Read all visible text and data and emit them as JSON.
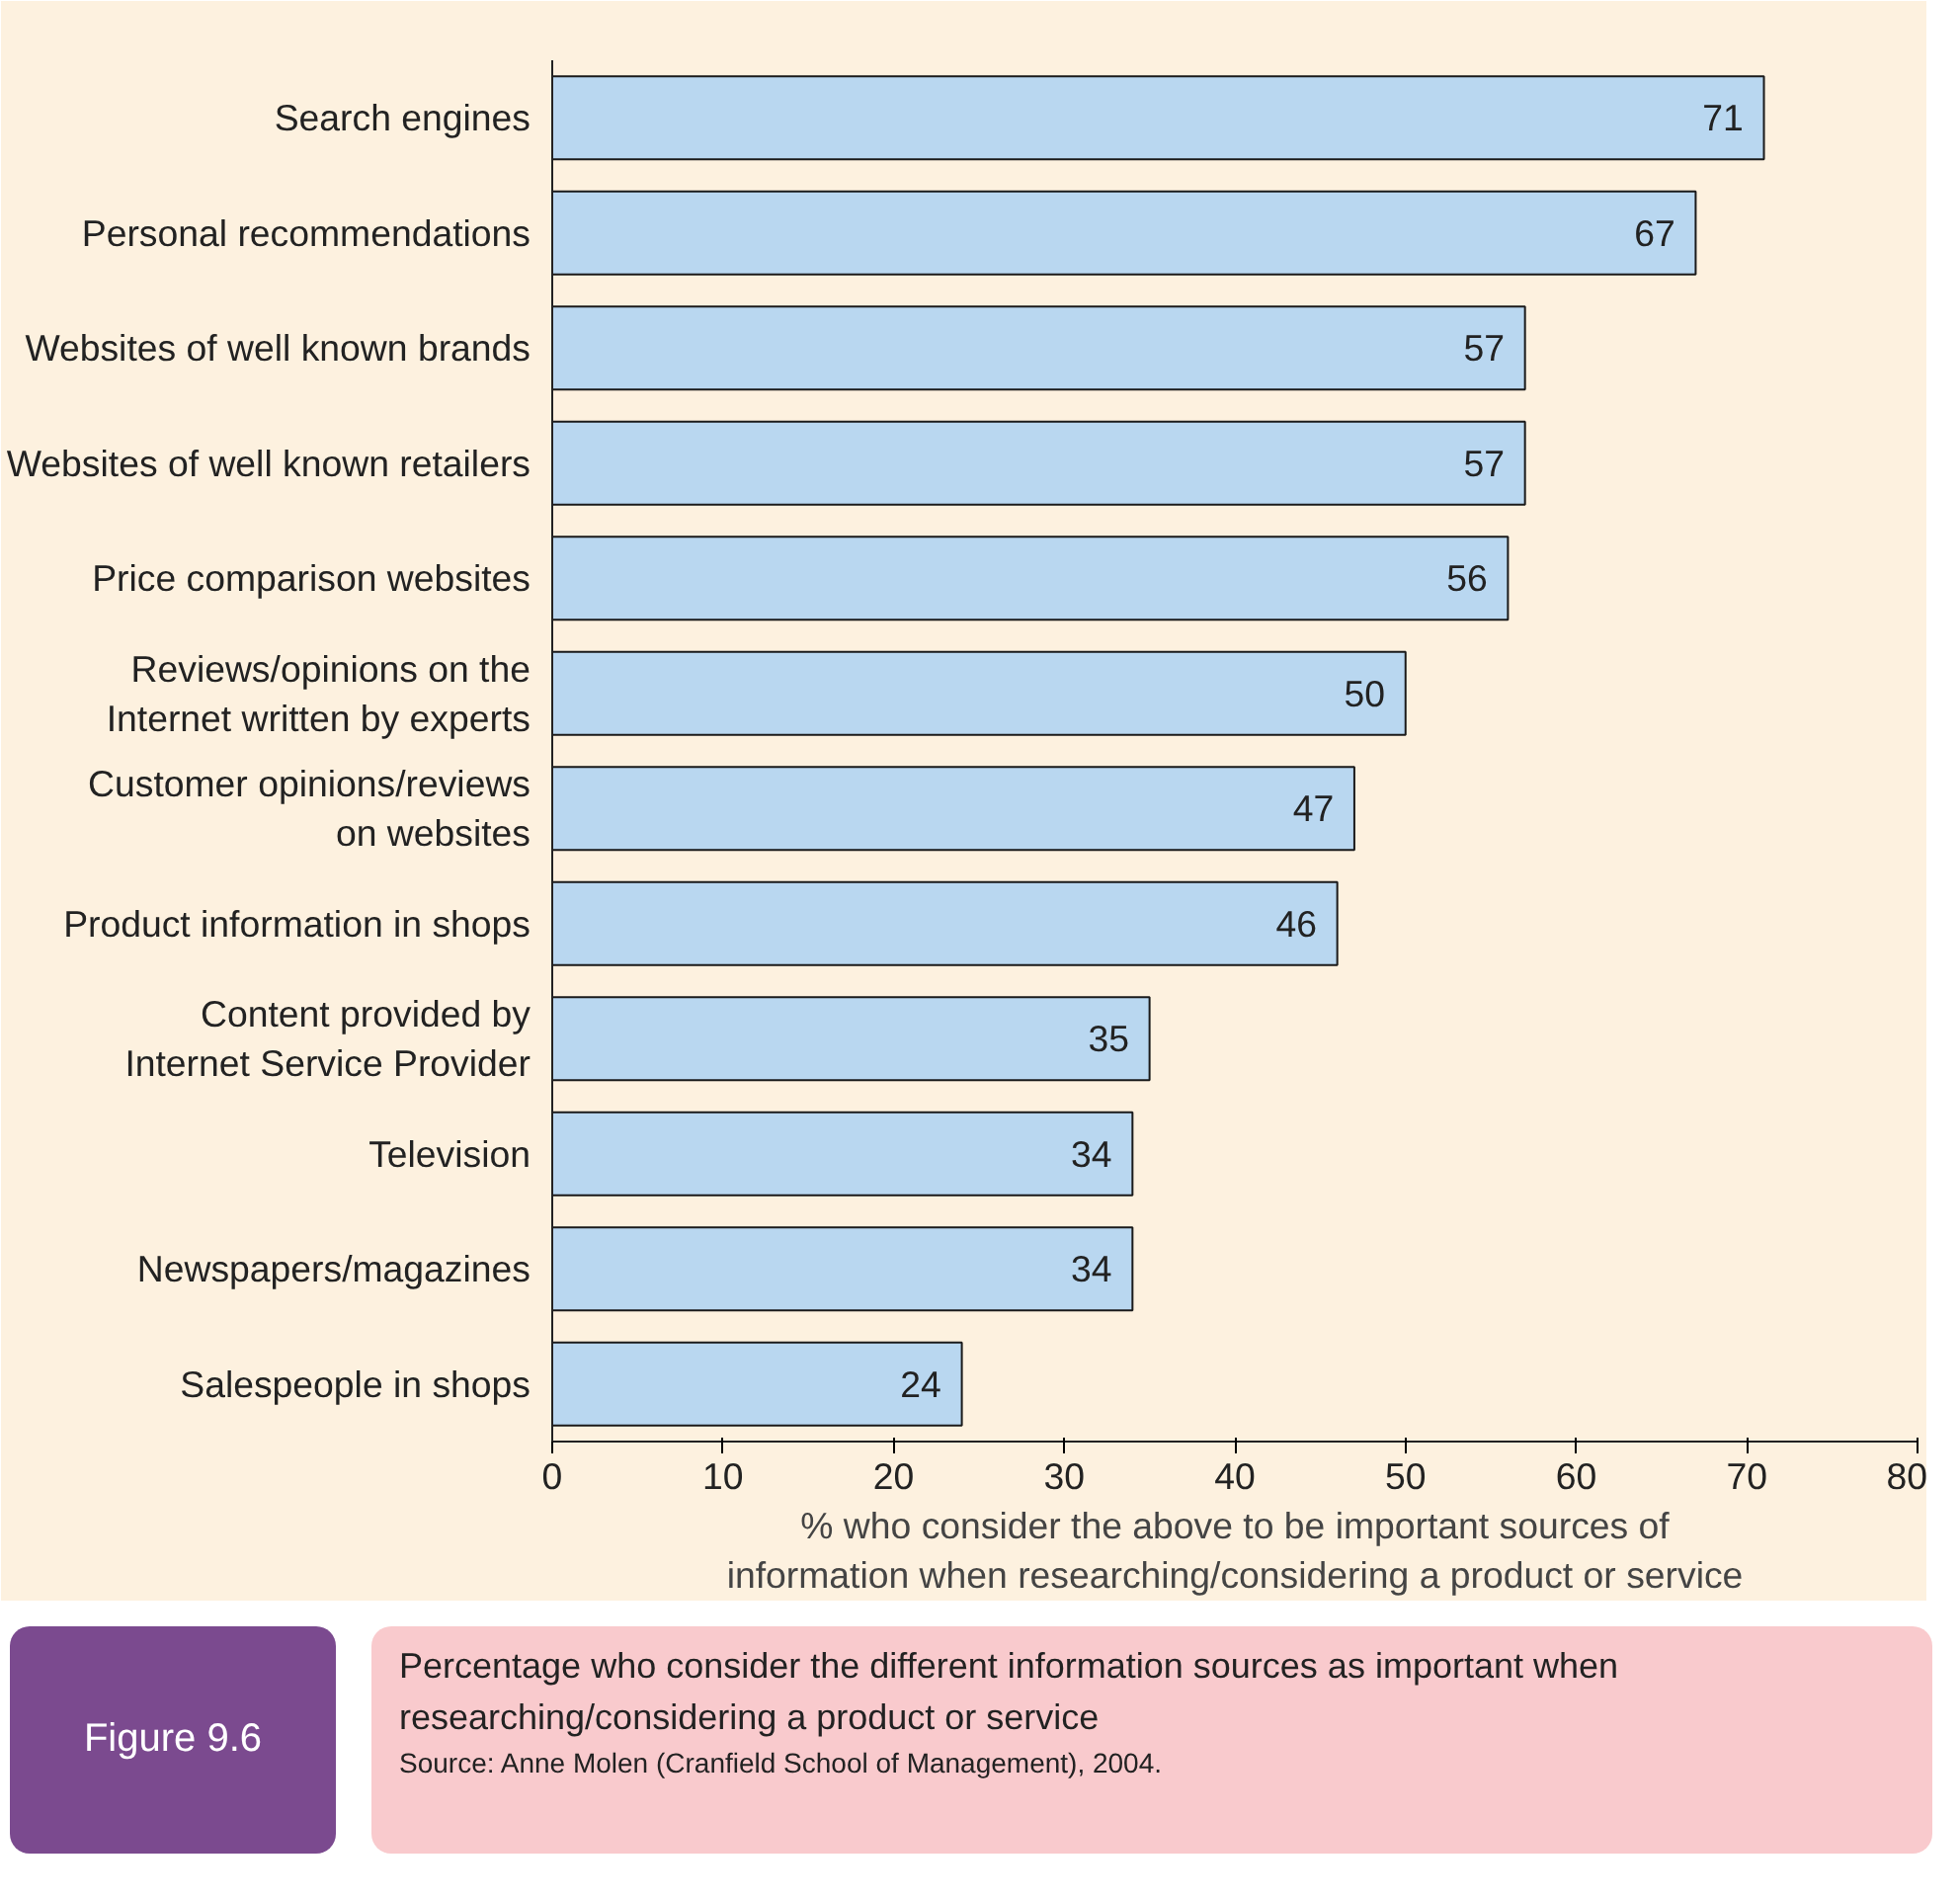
{
  "chart_data": {
    "type": "bar",
    "orientation": "horizontal",
    "title": "Percentage who consider the different information sources as important when researching/considering a product or service",
    "categories": [
      "Search engines",
      "Personal recommendations",
      "Websites of well known brands",
      "Websites of well known retailers",
      "Price comparison websites",
      "Reviews/opinions on the\nInternet written by experts",
      "Customer opinions/reviews\non websites",
      "Product information in shops",
      "Content provided by\nInternet Service Provider",
      "Television",
      "Newspapers/magazines",
      "Salespeople in shops"
    ],
    "values": [
      71,
      67,
      57,
      57,
      56,
      50,
      47,
      46,
      35,
      34,
      34,
      24
    ],
    "color": "#b9d7f0",
    "xlim": [
      0,
      80
    ],
    "xticks": [
      0,
      10,
      20,
      30,
      40,
      50,
      60,
      70,
      80
    ],
    "xlabel": "% who consider the above to be important sources of\ninformation when researching/considering a product or service",
    "data_labels": true,
    "grid": false,
    "annotations": [
      "Figure 9.6",
      "Source: Anne Molen (Cranfield School of Management), 2004."
    ]
  }
}
